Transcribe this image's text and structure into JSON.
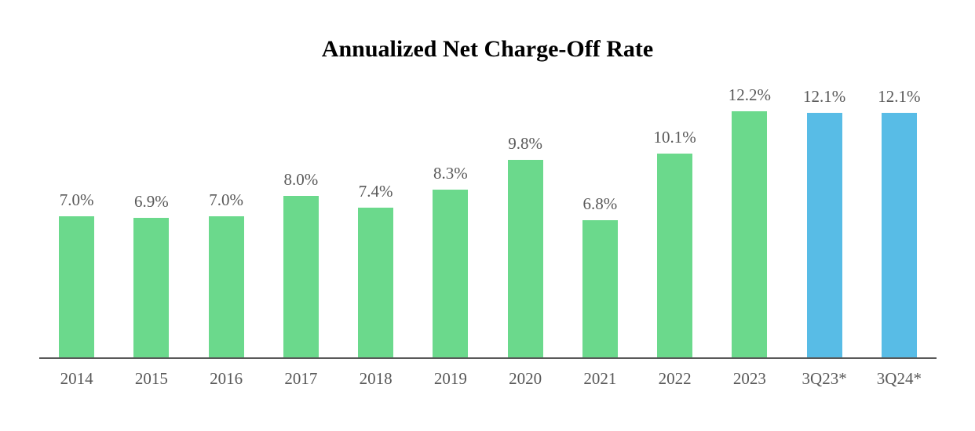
{
  "chart_data": {
    "type": "bar",
    "title": "Annualized Net Charge-Off Rate",
    "categories": [
      "2014",
      "2015",
      "2016",
      "2017",
      "2018",
      "2019",
      "2020",
      "2021",
      "2022",
      "2023",
      "3Q23*",
      "3Q24*"
    ],
    "values": [
      7.0,
      6.9,
      7.0,
      8.0,
      7.4,
      8.3,
      9.8,
      6.8,
      10.1,
      12.2,
      12.1,
      12.1
    ],
    "value_labels": [
      "7.0%",
      "6.9%",
      "7.0%",
      "8.0%",
      "7.4%",
      "8.3%",
      "9.8%",
      "6.8%",
      "10.1%",
      "12.2%",
      "12.1%",
      "12.1%"
    ],
    "xlabel": "",
    "ylabel": "",
    "ylim": [
      0,
      13
    ],
    "grid": false,
    "legend": false,
    "colors": {
      "bar_default": "#6BD98C",
      "bar_highlight": "#58BCE6",
      "label_text": "#595959",
      "axis_line": "#595959",
      "title_text": "#000000"
    },
    "highlight_categories": [
      "3Q23*",
      "3Q24*"
    ]
  }
}
